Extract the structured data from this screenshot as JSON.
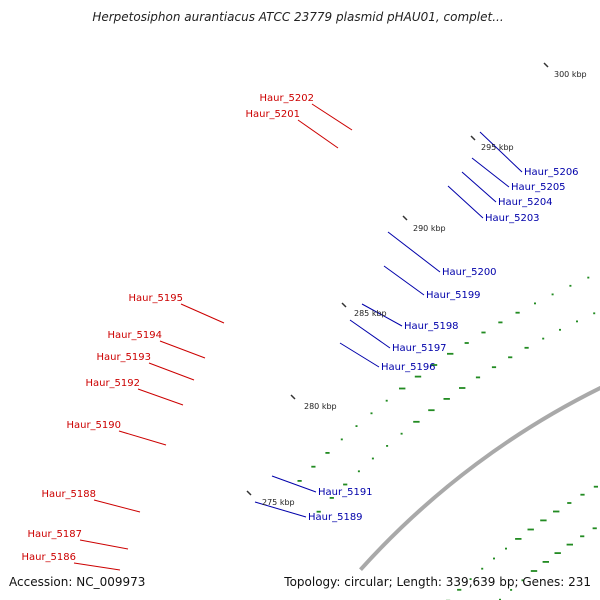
{
  "title": "Herpetosiphon aurantiacus ATCC 23779 plasmid pHAU01, complet...",
  "footer": {
    "accession": "Accession: NC_009973",
    "info": "Topology: circular; Length: 339,639 bp; Genes: 231"
  },
  "colors": {
    "backbone": "#a9a9a9",
    "forward_label": "#cc0000",
    "reverse_label": "#0000aa",
    "dots": "#228b22",
    "red": "#ff0000",
    "blue": "#0000ee",
    "green": "#44cc44",
    "olive": "#6b8e23",
    "magenta": "#ff33aa",
    "purple": "#4b3f8f",
    "lavender": "#8877cc",
    "orange": "#ff8c00",
    "gray": "#707070",
    "khaki": "#b5a66a"
  },
  "ticks": [
    "275 kbp",
    "280 kbp",
    "285 kbp",
    "290 kbp",
    "295 kbp",
    "300 kbp"
  ],
  "forward_labels": [
    "Haur_5202",
    "Haur_5201",
    "Haur_5195",
    "Haur_5194",
    "Haur_5193",
    "Haur_5192",
    "Haur_5190",
    "Haur_5188",
    "Haur_5187",
    "Haur_5186"
  ],
  "reverse_labels": [
    "Haur_5206",
    "Haur_5205",
    "Haur_5204",
    "Haur_5203",
    "Haur_5200",
    "Haur_5199",
    "Haur_5198",
    "Haur_5197",
    "Haur_5196",
    "Haur_5191",
    "Haur_5189"
  ]
}
